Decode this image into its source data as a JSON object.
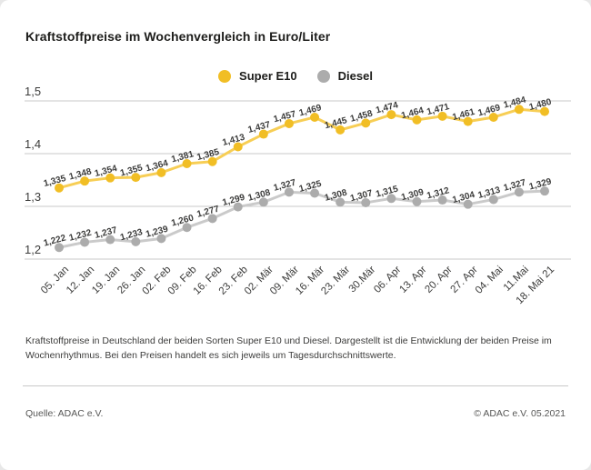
{
  "title": "Kraftstoffpreise im Wochenvergleich in Euro/Liter",
  "legend": {
    "items": [
      {
        "label": "Super E10",
        "color": "#F1BE25"
      },
      {
        "label": "Diesel",
        "color": "#ACACAC"
      }
    ]
  },
  "chart_data": {
    "type": "line",
    "title": "Kraftstoffpreise im Wochenvergleich in Euro/Liter",
    "xlabel": "",
    "ylabel": "Euro/Liter",
    "ylim": [
      1.2,
      1.5
    ],
    "grid": true,
    "legend_position": "top-center",
    "x_labels": [
      "05. Jan",
      "12. Jan",
      "19. Jan",
      "26. Jan",
      "02. Feb",
      "09. Feb",
      "16. Feb",
      "23. Feb",
      "02. Mär",
      "09. Mär",
      "16. Mär",
      "23. Mär",
      "30.Mär",
      "06. Apr",
      "13. Apr",
      "20. Apr",
      "27. Apr",
      "04. Mai",
      "11.Mai",
      "18. Mai 21"
    ],
    "y_ticks": {
      "labels": [
        "1,5",
        "1,4",
        "1,3",
        "1,2"
      ],
      "values": [
        1.5,
        1.4,
        1.3,
        1.2
      ]
    },
    "series": [
      {
        "name": "Super E10",
        "point_color": "#F1BE25",
        "line_color": "#F7CE55",
        "values": [
          1.335,
          1.348,
          1.354,
          1.355,
          1.364,
          1.381,
          1.385,
          1.413,
          1.437,
          1.457,
          1.469,
          1.445,
          1.458,
          1.474,
          1.464,
          1.471,
          1.461,
          1.469,
          1.484,
          1.48
        ],
        "labels": [
          "1,335",
          "1,348",
          "1,354",
          "1,355",
          "1,364",
          "1,381",
          "1,385",
          "1,413",
          "1,437",
          "1,457",
          "1,469",
          "1,445",
          "1,458",
          "1,474",
          "1,464",
          "1,471",
          "1,461",
          "1,469",
          "1,484",
          "1,480"
        ]
      },
      {
        "name": "Diesel",
        "point_color": "#ACACAC",
        "line_color": "#CACACA",
        "values": [
          1.222,
          1.232,
          1.237,
          1.233,
          1.239,
          1.26,
          1.277,
          1.299,
          1.308,
          1.327,
          1.325,
          1.308,
          1.307,
          1.315,
          1.309,
          1.312,
          1.304,
          1.313,
          1.327,
          1.329
        ],
        "labels": [
          "1,222",
          "1,232",
          "1,237",
          "1,233",
          "1,239",
          "1,260",
          "1,277",
          "1,299",
          "1,308",
          "1,327",
          "1,325",
          "1,308",
          "1,307",
          "1,315",
          "1,309",
          "1,312",
          "1,304",
          "1,313",
          "1,327",
          "1,329"
        ]
      }
    ]
  },
  "description": "Kraftstoffpreise in Deutschland der beiden Sorten Super E10 und Diesel. Dargestellt ist die Entwicklung der beiden Preise im Wochenrhythmus. Bei den Preisen handelt es sich jeweils um Tagesdurchschnittswerte.",
  "footer": {
    "source_left": "Quelle: ADAC e.V.",
    "source_right": "© ADAC e.V. 05.2021"
  }
}
